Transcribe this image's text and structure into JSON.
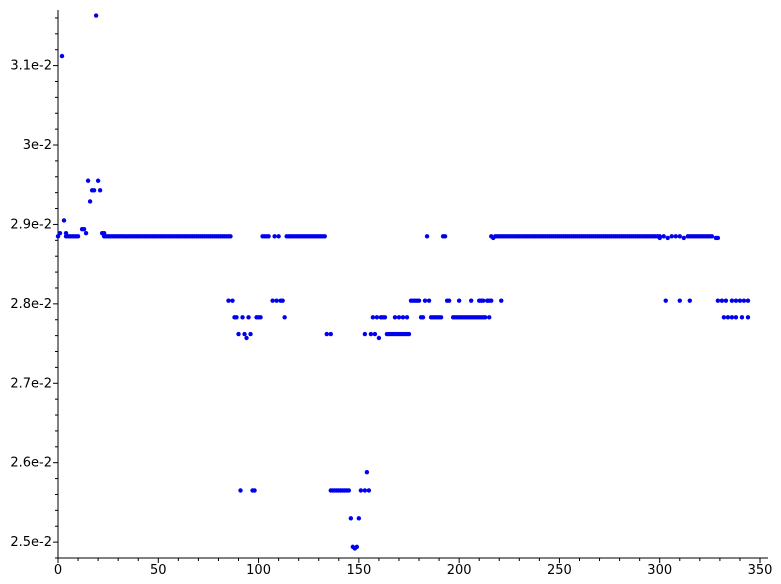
{
  "chart_data": {
    "type": "scatter",
    "title": "",
    "xlabel": "",
    "ylabel": "",
    "xlim": [
      0,
      350
    ],
    "ylim": [
      0.0248,
      0.0317
    ],
    "grid": false,
    "legend": "none",
    "point_color": "#0000ee",
    "x_ticks": [
      {
        "value": 0,
        "label": "0"
      },
      {
        "value": 50,
        "label": "50"
      },
      {
        "value": 100,
        "label": "100"
      },
      {
        "value": 150,
        "label": "150"
      },
      {
        "value": 200,
        "label": "200"
      },
      {
        "value": 250,
        "label": "250"
      },
      {
        "value": 300,
        "label": "300"
      },
      {
        "value": 350,
        "label": "350"
      }
    ],
    "y_ticks": [
      {
        "value": 0.025,
        "label": "2.5e-2"
      },
      {
        "value": 0.026,
        "label": "2.6e-2"
      },
      {
        "value": 0.027,
        "label": "2.7e-2"
      },
      {
        "value": 0.028,
        "label": "2.8e-2"
      },
      {
        "value": 0.029,
        "label": "2.9e-2"
      },
      {
        "value": 0.03,
        "label": "3e-2"
      },
      {
        "value": 0.031,
        "label": "3.1e-2"
      }
    ],
    "series": [
      {
        "segments": [
          {
            "x_start": 4,
            "x_end": 10,
            "step": 1,
            "y": 0.02885
          },
          {
            "x_start": 23,
            "x_end": 86,
            "step": 1,
            "y": 0.02885
          },
          {
            "x_start": 102,
            "x_end": 105,
            "step": 1,
            "y": 0.02885
          },
          {
            "x_start": 114,
            "x_end": 133,
            "step": 1,
            "y": 0.02885
          },
          {
            "x_start": 218,
            "x_end": 300,
            "step": 1,
            "y": 0.02885
          },
          {
            "x_start": 314,
            "x_end": 326,
            "step": 1,
            "y": 0.02885
          },
          {
            "x_start": 166,
            "x_end": 175,
            "step": 1,
            "y": 0.02762
          },
          {
            "x_start": 197,
            "x_end": 212,
            "step": 1,
            "y": 0.02783
          },
          {
            "x_start": 136,
            "x_end": 145,
            "step": 1,
            "y": 0.02565
          }
        ],
        "points": [
          [
            0,
            0.02885
          ],
          [
            1,
            0.02889
          ],
          [
            2,
            0.03112
          ],
          [
            3,
            0.02905
          ],
          [
            4,
            0.02889
          ],
          [
            12,
            0.02894
          ],
          [
            13,
            0.02894
          ],
          [
            14,
            0.02889
          ],
          [
            15,
            0.02955
          ],
          [
            16,
            0.02929
          ],
          [
            17,
            0.02943
          ],
          [
            18,
            0.02943
          ],
          [
            19,
            0.03163
          ],
          [
            20,
            0.02955
          ],
          [
            21,
            0.02943
          ],
          [
            22,
            0.02889
          ],
          [
            23,
            0.02889
          ],
          [
            108,
            0.02885
          ],
          [
            110,
            0.02885
          ],
          [
            216,
            0.02885
          ],
          [
            217,
            0.02883
          ],
          [
            300,
            0.02883
          ],
          [
            302,
            0.02885
          ],
          [
            304,
            0.02883
          ],
          [
            306,
            0.02885
          ],
          [
            308,
            0.02885
          ],
          [
            310,
            0.02885
          ],
          [
            312,
            0.02883
          ],
          [
            328,
            0.02883
          ],
          [
            329,
            0.02883
          ],
          [
            184,
            0.02885
          ],
          [
            192,
            0.02885
          ],
          [
            193,
            0.02885
          ],
          [
            85,
            0.02804
          ],
          [
            87,
            0.02804
          ],
          [
            88,
            0.02783
          ],
          [
            89,
            0.02783
          ],
          [
            90,
            0.02762
          ],
          [
            91,
            0.02565
          ],
          [
            92,
            0.02783
          ],
          [
            93,
            0.02762
          ],
          [
            94,
            0.02757
          ],
          [
            95,
            0.02783
          ],
          [
            96,
            0.02762
          ],
          [
            97,
            0.02565
          ],
          [
            98,
            0.02565
          ],
          [
            99,
            0.02783
          ],
          [
            100,
            0.02783
          ],
          [
            101,
            0.02783
          ],
          [
            107,
            0.02804
          ],
          [
            109,
            0.02804
          ],
          [
            111,
            0.02804
          ],
          [
            112,
            0.02804
          ],
          [
            113,
            0.02783
          ],
          [
            134,
            0.02762
          ],
          [
            136,
            0.02762
          ],
          [
            146,
            0.0253
          ],
          [
            147,
            0.02494
          ],
          [
            148,
            0.02492
          ],
          [
            149,
            0.02494
          ],
          [
            150,
            0.0253
          ],
          [
            151,
            0.02565
          ],
          [
            153,
            0.02565
          ],
          [
            153,
            0.02762
          ],
          [
            154,
            0.02588
          ],
          [
            155,
            0.02565
          ],
          [
            156,
            0.02762
          ],
          [
            157,
            0.02783
          ],
          [
            158,
            0.02762
          ],
          [
            159,
            0.02783
          ],
          [
            160,
            0.02757
          ],
          [
            161,
            0.02783
          ],
          [
            162,
            0.02783
          ],
          [
            163,
            0.02783
          ],
          [
            164,
            0.02762
          ],
          [
            165,
            0.02762
          ],
          [
            168,
            0.02783
          ],
          [
            170,
            0.02783
          ],
          [
            172,
            0.02783
          ],
          [
            174,
            0.02783
          ],
          [
            176,
            0.02804
          ],
          [
            177,
            0.02804
          ],
          [
            178,
            0.02804
          ],
          [
            179,
            0.02804
          ],
          [
            180,
            0.02804
          ],
          [
            181,
            0.02783
          ],
          [
            182,
            0.02783
          ],
          [
            183,
            0.02804
          ],
          [
            185,
            0.02804
          ],
          [
            186,
            0.02783
          ],
          [
            187,
            0.02783
          ],
          [
            188,
            0.02783
          ],
          [
            189,
            0.02783
          ],
          [
            190,
            0.02783
          ],
          [
            191,
            0.02783
          ],
          [
            194,
            0.02804
          ],
          [
            195,
            0.02804
          ],
          [
            200,
            0.02804
          ],
          [
            206,
            0.02804
          ],
          [
            210,
            0.02804
          ],
          [
            211,
            0.02804
          ],
          [
            212,
            0.02804
          ],
          [
            214,
            0.02804
          ],
          [
            215,
            0.02804
          ],
          [
            216,
            0.02804
          ],
          [
            221,
            0.02804
          ],
          [
            213,
            0.02783
          ],
          [
            215,
            0.02783
          ],
          [
            303,
            0.02804
          ],
          [
            310,
            0.02804
          ],
          [
            315,
            0.02804
          ],
          [
            329,
            0.02804
          ],
          [
            331,
            0.02804
          ],
          [
            333,
            0.02804
          ],
          [
            336,
            0.02804
          ],
          [
            338,
            0.02804
          ],
          [
            340,
            0.02804
          ],
          [
            342,
            0.02804
          ],
          [
            344,
            0.02804
          ],
          [
            332,
            0.02783
          ],
          [
            334,
            0.02783
          ],
          [
            336,
            0.02783
          ],
          [
            338,
            0.02783
          ],
          [
            341,
            0.02783
          ],
          [
            344,
            0.02783
          ]
        ]
      }
    ]
  }
}
